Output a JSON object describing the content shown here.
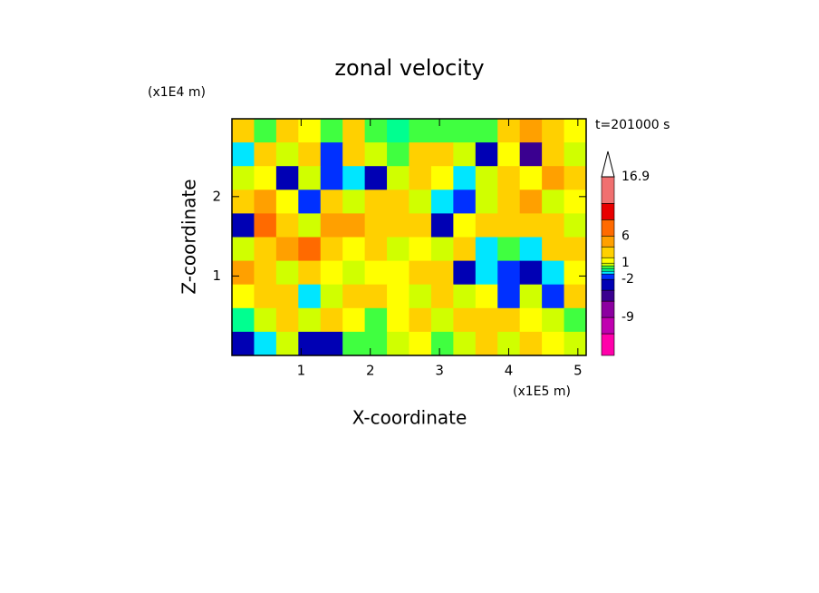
{
  "chart_data": {
    "type": "contour",
    "title": "zonal velocity",
    "xlabel": "X-coordinate",
    "ylabel": "Z-coordinate",
    "xunit": "(x1E5 m)",
    "yunit": "(x1E4 m)",
    "annotation": "t=201000 s",
    "xlim": [
      0,
      5.12
    ],
    "ylim": [
      0,
      2.98
    ],
    "xticks": [
      1,
      2,
      3,
      4,
      5
    ],
    "yticks": [
      1,
      2
    ],
    "field": {
      "values": [
        [
          2,
          0.3,
          3,
          1,
          0.3,
          2,
          0.3,
          -0.3,
          0.3,
          0.3,
          0.3,
          0.3,
          3,
          5,
          3,
          1
        ],
        [
          -0.7,
          3,
          0.7,
          3,
          -1.5,
          2,
          0.7,
          0.3,
          3,
          2,
          0.7,
          -3,
          1,
          -5,
          3,
          0.7
        ],
        [
          0.7,
          1,
          -3,
          0.7,
          -1.5,
          -0.7,
          -3,
          0.7,
          3,
          1,
          -0.7,
          0.7,
          3,
          1,
          5,
          2
        ],
        [
          3,
          5,
          1,
          -1.5,
          3,
          0.7,
          2,
          3,
          0.7,
          -0.7,
          -1.5,
          0.7,
          3,
          5,
          0.7,
          1
        ],
        [
          -3,
          7,
          3,
          0.7,
          5,
          5,
          3,
          2,
          3,
          -3,
          1,
          3,
          3,
          2,
          3,
          0.7
        ],
        [
          0.7,
          3,
          5,
          7,
          3,
          1,
          2,
          0.7,
          1,
          0.7,
          3,
          -0.7,
          0.3,
          -0.7,
          2,
          3
        ],
        [
          5,
          3,
          0.7,
          3,
          1,
          0.7,
          1,
          1,
          2,
          3,
          -3,
          -0.7,
          -1.5,
          -3,
          -0.7,
          1
        ],
        [
          1,
          3,
          3,
          -0.7,
          0.7,
          2,
          3,
          1,
          0.7,
          3,
          0.7,
          1,
          -1.5,
          0.7,
          -1.5,
          2
        ],
        [
          -0.3,
          0.7,
          2,
          0.7,
          3,
          1,
          0.3,
          1,
          2,
          0.7,
          2,
          3,
          3,
          1,
          0.7,
          0.3
        ],
        [
          -3,
          -0.7,
          0.7,
          -3,
          -3,
          0.3,
          0.3,
          0.7,
          1,
          0.3,
          0.7,
          3,
          0.7,
          3,
          1,
          0.7
        ]
      ]
    },
    "colorbar": {
      "levels": [
        -16,
        -12,
        -9,
        -6,
        -4,
        -2,
        -1,
        -0.5,
        0,
        0.5,
        1,
        2,
        4,
        6,
        9,
        12,
        16.9
      ],
      "colors": [
        "#ff00aa",
        "#c000b0",
        "#8c00a0",
        "#3a0090",
        "#0000b4",
        "#0030ff",
        "#00e6ff",
        "#00ff90",
        "#40ff40",
        "#d0ff00",
        "#ffff00",
        "#ffd000",
        "#ffa000",
        "#ff6a00",
        "#e80000",
        "#f07070",
        "#ffc8c8"
      ],
      "ticks": [
        16.9,
        6,
        1,
        -2,
        -9
      ]
    }
  }
}
